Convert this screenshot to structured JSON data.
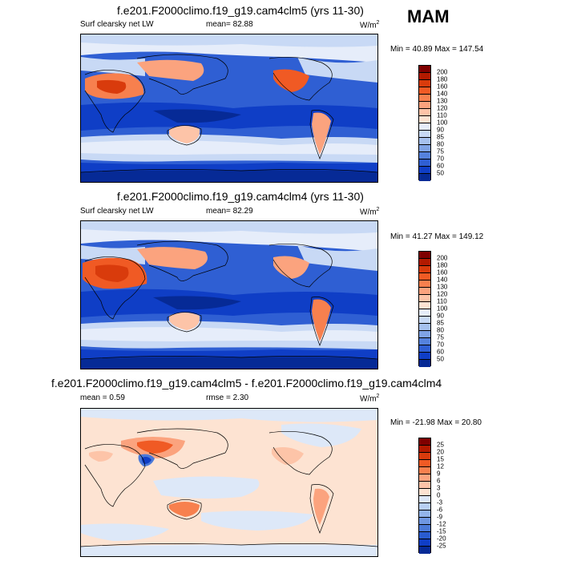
{
  "season": "MAM",
  "panels": [
    {
      "title": "f.e201.F2000climo.f19_g19.cam4clm5 (yrs 11-30)",
      "variable": "Surf clearsky net LW",
      "mean_label": "mean=",
      "mean_value": "82.88",
      "units": "W/m",
      "units_sup": "2",
      "minmax": "Min =  40.89 Max = 147.54",
      "colorbar_labels": [
        "200",
        "180",
        "160",
        "140",
        "130",
        "120",
        "110",
        "100",
        "90",
        "85",
        "80",
        "75",
        "70",
        "60",
        "50"
      ]
    },
    {
      "title": "f.e201.F2000climo.f19_g19.cam4clm4 (yrs 11-30)",
      "variable": "Surf clearsky net LW",
      "mean_label": "mean=",
      "mean_value": "82.29",
      "units": "W/m",
      "units_sup": "2",
      "minmax": "Min =  41.27 Max = 149.12",
      "colorbar_labels": [
        "200",
        "180",
        "160",
        "140",
        "130",
        "120",
        "110",
        "100",
        "90",
        "85",
        "80",
        "75",
        "70",
        "60",
        "50"
      ]
    },
    {
      "title": "f.e201.F2000climo.f19_g19.cam4clm5 - f.e201.F2000climo.f19_g19.cam4clm4",
      "mean_label": "mean =",
      "mean_value": "0.59",
      "rmse_label": "rmse =",
      "rmse_value": "2.30",
      "units": "W/m",
      "units_sup": "2",
      "minmax": "Min = -21.98 Max =  20.80",
      "colorbar_labels": [
        "25",
        "20",
        "15",
        "12",
        "9",
        "6",
        "3",
        "0",
        "-3",
        "-6",
        "-9",
        "-12",
        "-15",
        "-20",
        "-25"
      ]
    }
  ],
  "colors": {
    "abs_scale": [
      "#7f0000",
      "#b31a00",
      "#d93b0c",
      "#f05a24",
      "#f7804e",
      "#fba37e",
      "#fdc4a8",
      "#fde3d2",
      "#e6edfa",
      "#c8d9f5",
      "#a6c1ee",
      "#7fa3e6",
      "#5582dd",
      "#2f5fd3",
      "#0f3ec6",
      "#062a96"
    ],
    "diff_scale": [
      "#7f0000",
      "#b31a00",
      "#d93b0c",
      "#f05a24",
      "#f7804e",
      "#fba37e",
      "#fdc4a8",
      "#fde3d2",
      "#dde8f8",
      "#b8cff2",
      "#93b4ea",
      "#6f97e2",
      "#4b7ad9",
      "#2a5ccf",
      "#0f3ec6",
      "#062a96"
    ],
    "ocean_deep": "#0f3ec6",
    "ocean_mid": "#2f5fd3",
    "light_blue": "#dde8f8",
    "peach": "#fde3d2"
  }
}
